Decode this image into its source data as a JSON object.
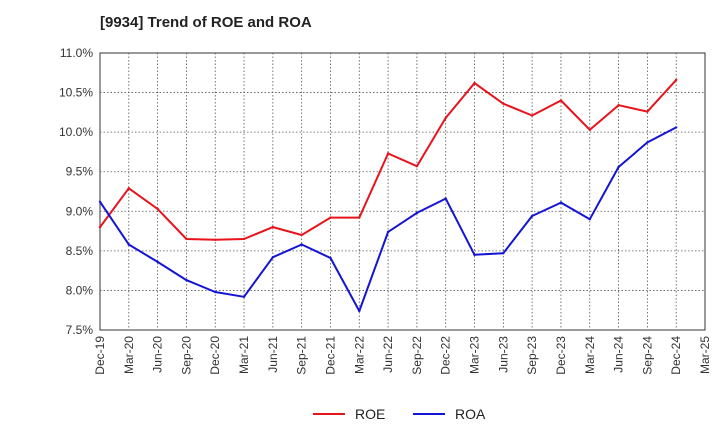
{
  "chart_data": {
    "type": "line",
    "title": "[9934]  Trend of ROE and ROA",
    "xlabel": "",
    "ylabel": "",
    "ylim": [
      7.5,
      11.0
    ],
    "y_ticks": [
      "7.5%",
      "8.0%",
      "8.5%",
      "9.0%",
      "9.5%",
      "10.0%",
      "10.5%",
      "11.0%"
    ],
    "y_tick_values": [
      7.5,
      8.0,
      8.5,
      9.0,
      9.5,
      10.0,
      10.5,
      11.0
    ],
    "x_tick_labels": [
      "Dec-19",
      "Mar-20",
      "Jun-20",
      "Sep-20",
      "Dec-20",
      "Mar-21",
      "Jun-21",
      "Sep-21",
      "Dec-21",
      "Mar-22",
      "Jun-22",
      "Sep-22",
      "Dec-22",
      "Mar-23",
      "Jun-23",
      "Sep-23",
      "Dec-23",
      "Mar-24",
      "Jun-24",
      "Sep-24",
      "Dec-24",
      "Mar-25"
    ],
    "x": [
      "Dec-19",
      "Mar-20",
      "Jun-20",
      "Sep-20",
      "Dec-20",
      "Mar-21",
      "Jun-21",
      "Sep-21",
      "Dec-21",
      "Mar-22",
      "Jun-22",
      "Sep-22",
      "Dec-22",
      "Mar-23",
      "Jun-23",
      "Sep-23",
      "Dec-23",
      "Mar-24",
      "Jun-24",
      "Sep-24",
      "Dec-24"
    ],
    "series": [
      {
        "name": "ROE",
        "color": "#e8141c",
        "values": [
          8.8,
          9.29,
          9.03,
          8.65,
          8.64,
          8.65,
          8.8,
          8.7,
          8.92,
          8.92,
          9.73,
          9.57,
          10.18,
          10.62,
          10.36,
          10.21,
          10.4,
          10.03,
          10.34,
          10.26,
          10.66
        ]
      },
      {
        "name": "ROA",
        "color": "#1414d4",
        "values": [
          9.12,
          8.58,
          8.36,
          8.13,
          7.98,
          7.92,
          8.42,
          8.58,
          8.41,
          7.74,
          8.74,
          8.98,
          9.16,
          8.45,
          8.47,
          8.94,
          9.11,
          8.9,
          9.56,
          9.87,
          10.06
        ]
      }
    ],
    "grid": true,
    "legend": "bottom-center"
  }
}
